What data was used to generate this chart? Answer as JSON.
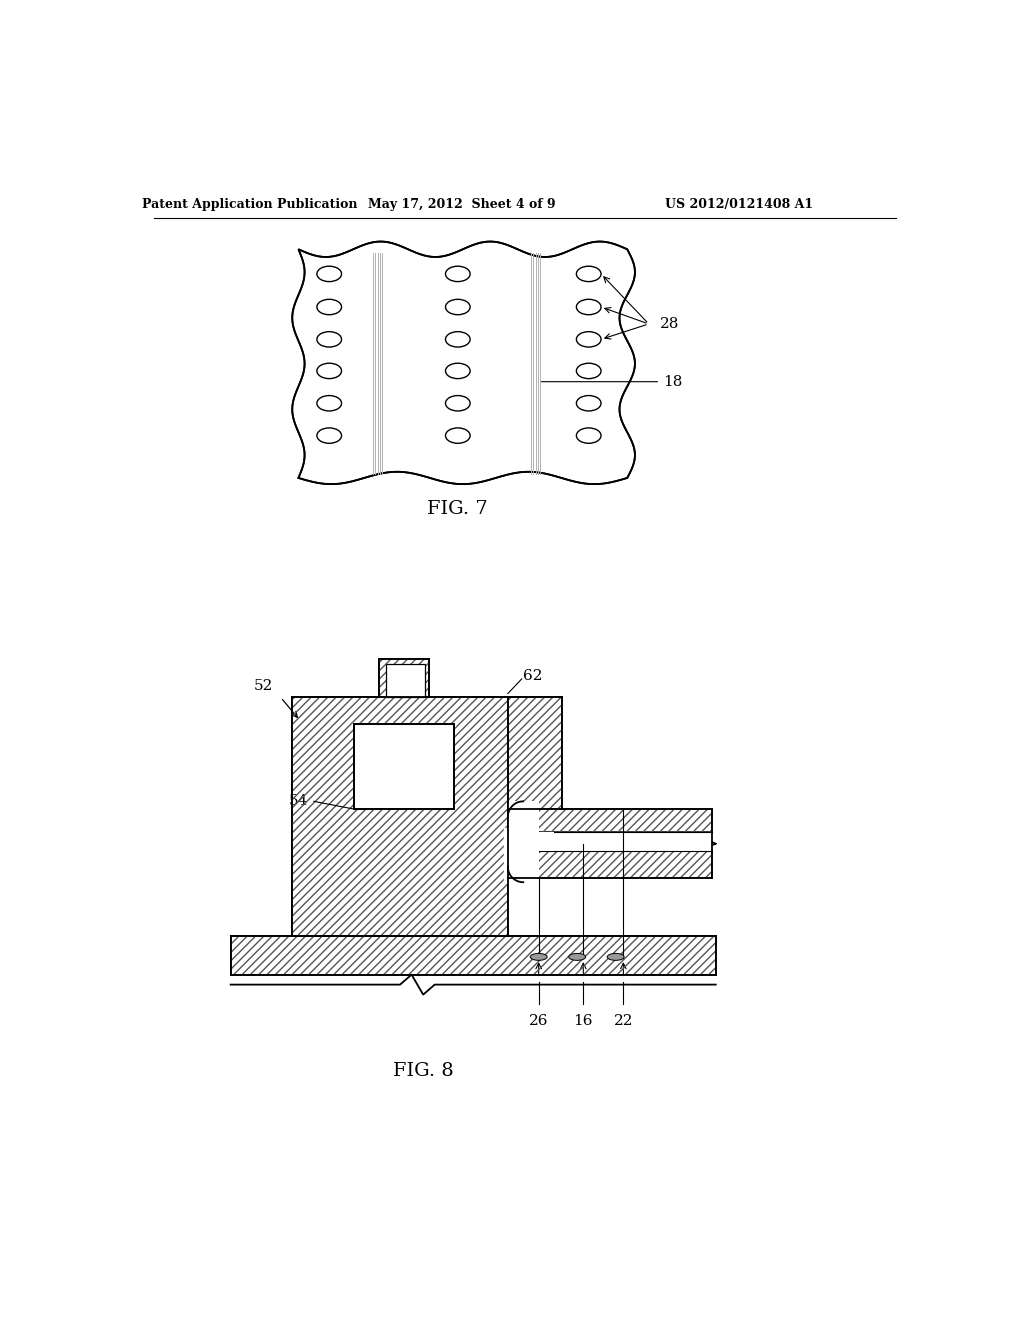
{
  "bg_color": "#ffffff",
  "header_text": "Patent Application Publication",
  "header_date": "May 17, 2012  Sheet 4 of 9",
  "header_patent": "US 2012/0121408 A1",
  "fig7_label": "FIG. 7",
  "fig8_label": "FIG. 8",
  "label_28": "28",
  "label_18": "18",
  "label_52": "52",
  "label_54": "54",
  "label_62": "62",
  "label_26": "26",
  "label_16": "16",
  "label_22": "22"
}
